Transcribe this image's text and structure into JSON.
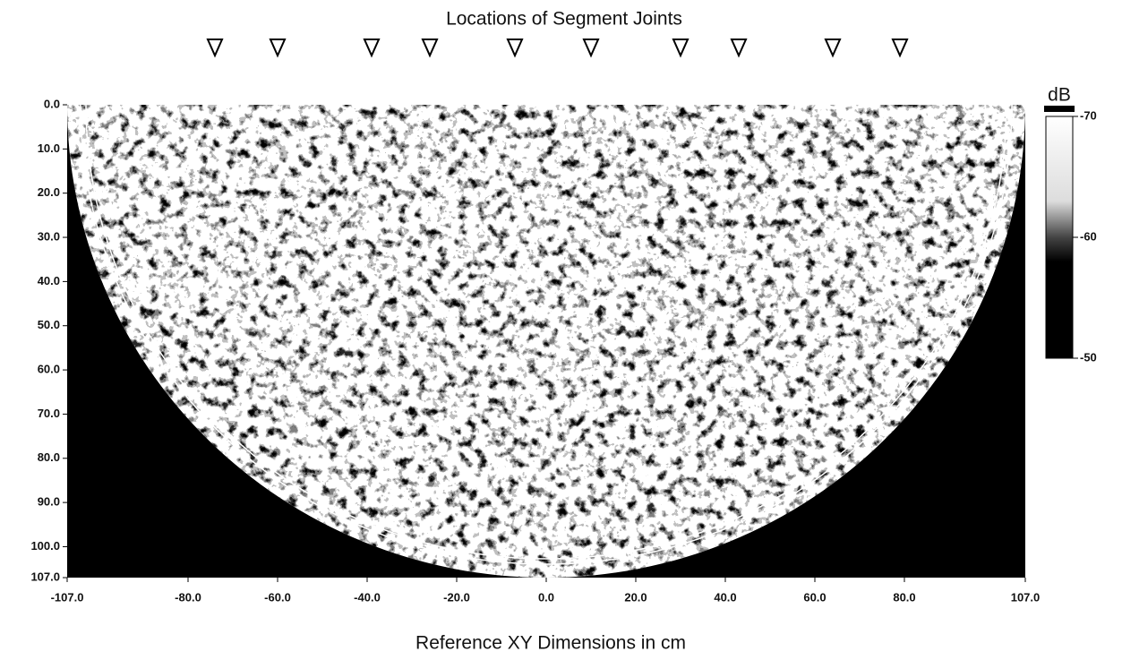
{
  "chart_data": {
    "type": "heatmap",
    "title": "Locations of Segment Joints",
    "xlabel": "Reference XY Dimensions in cm",
    "xlim": [
      -107,
      107
    ],
    "xticks": [
      {
        "value": -107,
        "label": "-107.0"
      },
      {
        "value": -80,
        "label": "-80.0"
      },
      {
        "value": -60,
        "label": "-60.0"
      },
      {
        "value": -40,
        "label": "-40.0"
      },
      {
        "value": -20,
        "label": "-20.0"
      },
      {
        "value": 0,
        "label": "0.0"
      },
      {
        "value": 20,
        "label": "20.0"
      },
      {
        "value": 40,
        "label": "40.0"
      },
      {
        "value": 60,
        "label": "60.0"
      },
      {
        "value": 80,
        "label": "80.0"
      },
      {
        "value": 107,
        "label": "107.0"
      }
    ],
    "ylim": [
      0,
      107
    ],
    "y_inverted": true,
    "yticks": [
      {
        "value": 0,
        "label": "0.0"
      },
      {
        "value": 10,
        "label": "10.0"
      },
      {
        "value": 20,
        "label": "20.0"
      },
      {
        "value": 30,
        "label": "30.0"
      },
      {
        "value": 40,
        "label": "40.0"
      },
      {
        "value": 50,
        "label": "50.0"
      },
      {
        "value": 60,
        "label": "60.0"
      },
      {
        "value": 70,
        "label": "70.0"
      },
      {
        "value": 80,
        "label": "80.0"
      },
      {
        "value": 90,
        "label": "90.0"
      },
      {
        "value": 100,
        "label": "100.0"
      },
      {
        "value": 107,
        "label": "107.0"
      }
    ],
    "joints": [
      -74,
      -60,
      -39,
      -26,
      -7,
      10,
      30,
      43,
      64,
      79
    ],
    "colorbar": {
      "label": "dB",
      "lim": [
        -70,
        -50
      ],
      "ticks": [
        -70,
        -60,
        -50
      ]
    }
  }
}
